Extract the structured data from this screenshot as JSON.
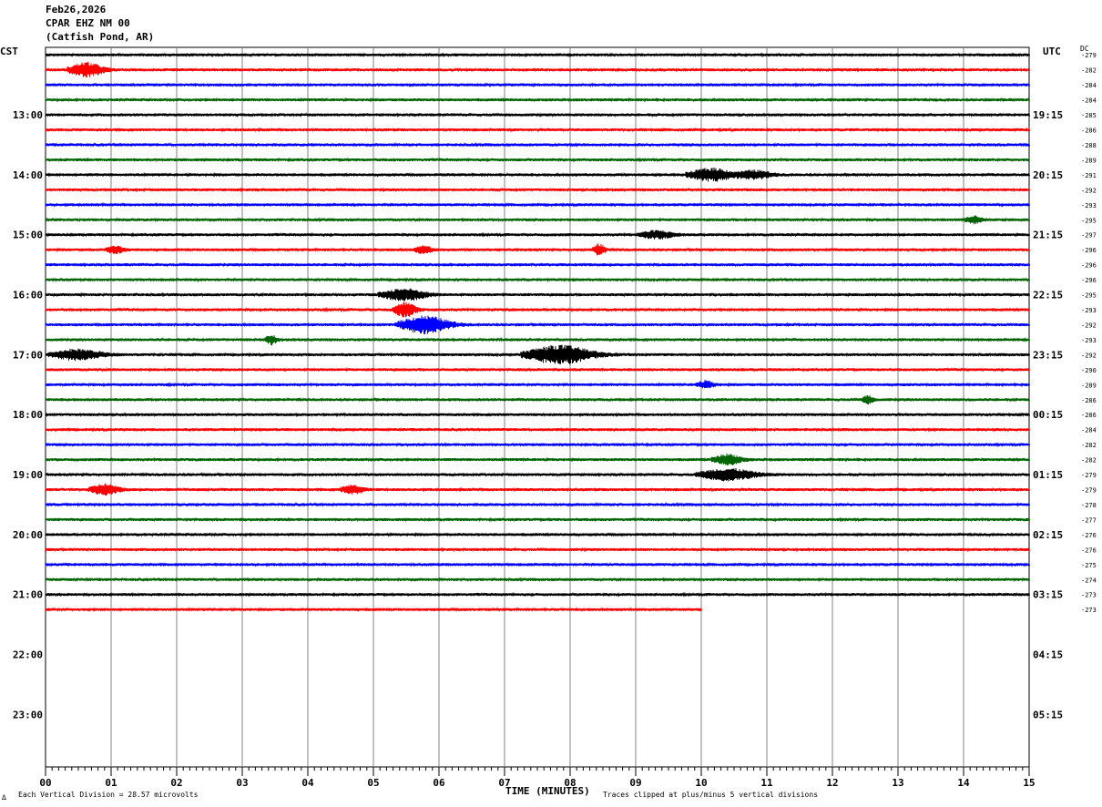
{
  "header": {
    "date": "Feb26,2026",
    "station": "CPAR EHZ NM 00",
    "location": "(Catfish Pond, AR)"
  },
  "left_timezone": "CST",
  "right_timezone": "UTC",
  "dc_label": "DC",
  "footer": {
    "scale_note": "Each Vertical Division =   28.57 microvolts",
    "clip_note": "Traces clipped at plus/minus 5 vertical divisions",
    "corner_mark": "∆"
  },
  "colors": {
    "cycle": [
      "#000000",
      "#ff0000",
      "#0000ff",
      "#006400"
    ],
    "grid": "#808080"
  },
  "chart_data": {
    "type": "helicorder",
    "xlabel": "TIME (MINUTES)",
    "x_ticks": [
      "00",
      "01",
      "02",
      "03",
      "04",
      "05",
      "06",
      "07",
      "08",
      "09",
      "10",
      "11",
      "12",
      "13",
      "14",
      "15"
    ],
    "xlim": [
      0,
      15
    ],
    "minutes_per_row": 15,
    "rows_total": 48,
    "left_hour_labels": [
      "13:00",
      "14:00",
      "15:00",
      "16:00",
      "17:00",
      "18:00",
      "19:00",
      "20:00",
      "21:00",
      "22:00",
      "23:00"
    ],
    "right_hour_labels": [
      "19:15",
      "20:15",
      "21:15",
      "22:15",
      "23:15",
      "00:15",
      "01:15",
      "02:15",
      "03:15",
      "04:15",
      "05:15"
    ],
    "hour_label_rows": [
      4,
      8,
      12,
      16,
      20,
      24,
      28,
      32,
      36,
      40,
      44
    ],
    "dc_offsets": [
      -279,
      -282,
      -284,
      -284,
      -285,
      -286,
      -288,
      -289,
      -291,
      -292,
      -293,
      -295,
      -297,
      -296,
      -296,
      -296,
      -295,
      -293,
      -292,
      -293,
      -292,
      -290,
      -289,
      -286,
      -286,
      -284,
      -282,
      -282,
      -279,
      -279,
      -278,
      -277,
      -276,
      -276,
      -275,
      -274,
      -273,
      -273
    ],
    "last_row_end_minute": 10.0,
    "events": [
      {
        "row": 1,
        "minute": 0.5,
        "amp": 2.5,
        "dur": 0.6
      },
      {
        "row": 8,
        "minute": 10.0,
        "amp": 2.2,
        "dur": 0.8
      },
      {
        "row": 8,
        "minute": 10.7,
        "amp": 1.4,
        "dur": 0.6
      },
      {
        "row": 11,
        "minute": 14.1,
        "amp": 1.2,
        "dur": 0.3
      },
      {
        "row": 12,
        "minute": 9.2,
        "amp": 1.3,
        "dur": 0.6
      },
      {
        "row": 13,
        "minute": 1.0,
        "amp": 1.3,
        "dur": 0.3
      },
      {
        "row": 13,
        "minute": 5.7,
        "amp": 1.2,
        "dur": 0.3
      },
      {
        "row": 13,
        "minute": 8.4,
        "amp": 2.0,
        "dur": 0.2
      },
      {
        "row": 16,
        "minute": 5.3,
        "amp": 2.0,
        "dur": 0.8
      },
      {
        "row": 17,
        "minute": 5.4,
        "amp": 2.4,
        "dur": 0.4
      },
      {
        "row": 18,
        "minute": 5.6,
        "amp": 3.0,
        "dur": 0.9
      },
      {
        "row": 19,
        "minute": 3.4,
        "amp": 1.6,
        "dur": 0.2
      },
      {
        "row": 20,
        "minute": 0.3,
        "amp": 1.8,
        "dur": 0.9
      },
      {
        "row": 20,
        "minute": 7.6,
        "amp": 3.2,
        "dur": 1.2
      },
      {
        "row": 22,
        "minute": 10.0,
        "amp": 1.2,
        "dur": 0.3
      },
      {
        "row": 23,
        "minute": 12.5,
        "amp": 1.3,
        "dur": 0.2
      },
      {
        "row": 27,
        "minute": 10.3,
        "amp": 1.8,
        "dur": 0.5
      },
      {
        "row": 28,
        "minute": 10.2,
        "amp": 2.0,
        "dur": 1.0
      },
      {
        "row": 29,
        "minute": 0.8,
        "amp": 1.8,
        "dur": 0.5
      },
      {
        "row": 29,
        "minute": 4.6,
        "amp": 1.4,
        "dur": 0.4
      }
    ]
  }
}
